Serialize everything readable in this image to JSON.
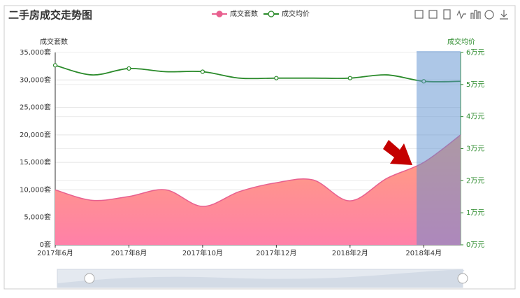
{
  "chart_data": {
    "type": "area-line",
    "title": "二手房成交走势图",
    "y_axis_label": "成交套数",
    "y2_axis_label": "成交均价",
    "categories": [
      "2017年6月",
      null,
      "2017年8月",
      null,
      "2017年10月",
      null,
      "2017年12月",
      null,
      "2018年2月",
      null,
      "2018年4月",
      null
    ],
    "series": [
      {
        "name": "成交套数",
        "type": "area",
        "color": "#e8608f",
        "values": [
          10000,
          8100,
          8800,
          10000,
          7000,
          9700,
          11300,
          11800,
          8000,
          12100,
          15000,
          20000
        ]
      },
      {
        "name": "成交均价",
        "type": "line",
        "axis": "y2",
        "color": "#2a8a2a",
        "values": [
          5.6,
          5.3,
          5.5,
          5.4,
          5.4,
          5.2,
          5.2,
          5.2,
          5.2,
          5.3,
          5.1,
          5.1
        ]
      }
    ],
    "ylim": [
      0,
      35000
    ],
    "yticks": [
      {
        "value": 0,
        "label": "0套"
      },
      {
        "value": 5000,
        "label": "5,000套"
      },
      {
        "value": 10000,
        "label": "10,000套"
      },
      {
        "value": 15000,
        "label": "15,000套"
      },
      {
        "value": 20000,
        "label": "20,000套"
      },
      {
        "value": 25000,
        "label": "25,000套"
      },
      {
        "value": 30000,
        "label": "30,000套"
      },
      {
        "value": 35000,
        "label": "35,000套"
      }
    ],
    "y2lim": [
      0,
      6
    ],
    "y2ticks": [
      {
        "value": 0,
        "label": "0万元"
      },
      {
        "value": 1,
        "label": "1万元"
      },
      {
        "value": 2,
        "label": "2万元"
      },
      {
        "value": 3,
        "label": "3万元"
      },
      {
        "value": 4,
        "label": "4万元"
      },
      {
        "value": 5,
        "label": "5万元"
      },
      {
        "value": 6,
        "label": "6万元"
      }
    ],
    "grid": true
  }
}
